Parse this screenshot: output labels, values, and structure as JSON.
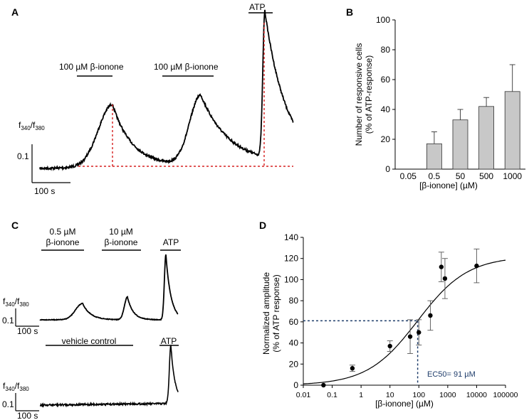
{
  "chart_data": [
    {
      "panel": "A",
      "type": "line",
      "ylabel": "f340/f380",
      "scale_y": "0.1",
      "scale_x": "100 s",
      "stimuli": [
        "100 µM β-ionone",
        "100 µM β-ionone",
        "ATP"
      ],
      "series": [
        {
          "name": "f340/f380 trace",
          "peaks": [
            "β-ionone",
            "β-ionone",
            "ATP"
          ]
        }
      ]
    },
    {
      "panel": "B",
      "type": "bar",
      "title": "",
      "xlabel": "[β-ionone] (µM)",
      "ylabel": "Number of responsive cells",
      "ylabel2": "(% of ATP-response)",
      "categories": [
        "0.05",
        "0.5",
        "50",
        "500",
        "1000"
      ],
      "values": [
        0,
        17,
        33,
        42,
        52
      ],
      "errors": [
        0,
        8,
        7,
        6,
        18
      ],
      "ylim": [
        0,
        100
      ],
      "yticks": [
        "0",
        "20",
        "40",
        "60",
        "80",
        "100"
      ],
      "color": "#c8c8c8"
    },
    {
      "panel": "C",
      "type": "line",
      "top": {
        "stim1": [
          "0.5 µM",
          "β-ionone"
        ],
        "stim2": [
          "10 µM",
          "β-ionone"
        ],
        "stim3": "ATP"
      },
      "bottom": {
        "stim1": "vehicle control",
        "stim2": "ATP"
      },
      "ylabel": "f340/f380",
      "scale_y": "0.1",
      "scale_x": "100 s"
    },
    {
      "panel": "D",
      "type": "scatter",
      "xlabel": "[β-ionone] (µM)",
      "ylabel": "Normalized amplitude",
      "ylabel2": "(% of ATP response)",
      "xscale": "log",
      "xlim": [
        0.01,
        100000
      ],
      "ylim": [
        0,
        140
      ],
      "xticks": [
        "0.01",
        "0.1",
        "1",
        "10",
        "100",
        "1000",
        "10000",
        "100000"
      ],
      "yticks": [
        "0",
        "20",
        "40",
        "60",
        "80",
        "100",
        "120",
        "140"
      ],
      "points": [
        {
          "x": 0.05,
          "y": 0,
          "err": 0
        },
        {
          "x": 0.5,
          "y": 16,
          "err": 3
        },
        {
          "x": 10,
          "y": 37,
          "err": 5
        },
        {
          "x": 50,
          "y": 46,
          "err": 16
        },
        {
          "x": 100,
          "y": 50,
          "err": 12
        },
        {
          "x": 250,
          "y": 66,
          "err": 14
        },
        {
          "x": 600,
          "y": 112,
          "err": 14
        },
        {
          "x": 800,
          "y": 101,
          "err": 19
        },
        {
          "x": 10000,
          "y": 113,
          "err": 16
        }
      ],
      "fit": {
        "bottom": 0,
        "top": 122,
        "ec50": 91,
        "hill": 0.5
      },
      "ec50_line_y": 61,
      "ec50_label": "EC50= 91 µM",
      "ec50_color": "#1f3d6b"
    }
  ]
}
